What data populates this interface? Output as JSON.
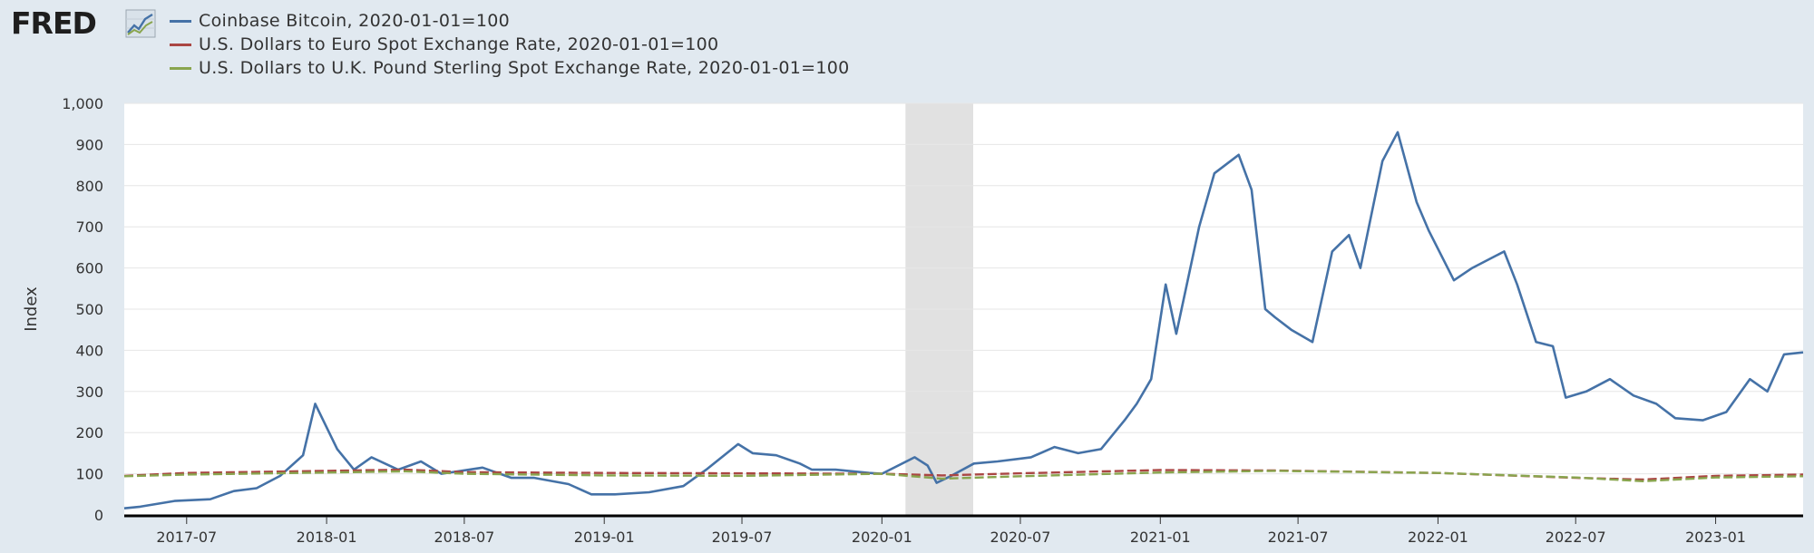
{
  "logo": {
    "text": "FRED",
    "icon": "fred-chart-icon"
  },
  "colors": {
    "bitcoin": "#4572a7",
    "euro": "#aa4643",
    "pound": "#89a54e",
    "recession": "#e1e1e1",
    "background": "#e1e9f0"
  },
  "chart_data": {
    "type": "line",
    "title": "",
    "xlabel": "",
    "ylabel": "Index",
    "ylim": [
      0,
      1000
    ],
    "x_range": [
      "2017-04-10",
      "2023-04-26"
    ],
    "y_ticks": [
      "0",
      "100",
      "200",
      "300",
      "400",
      "500",
      "600",
      "700",
      "800",
      "900",
      "1,000"
    ],
    "x_ticks": [
      "2017-07",
      "2018-01",
      "2018-07",
      "2019-01",
      "2019-07",
      "2020-01",
      "2020-07",
      "2021-01",
      "2021-07",
      "2022-01",
      "2022-07",
      "2023-01"
    ],
    "grid": "horizontal",
    "legend_position": "top",
    "recession_shading": [
      [
        "2020-02-01",
        "2020-04-30"
      ]
    ],
    "series": [
      {
        "name": "Coinbase Bitcoin, 2020-01-01=100",
        "color": "#4572a7",
        "x": [
          "2017-04-10",
          "2017-05-01",
          "2017-06-15",
          "2017-08-01",
          "2017-09-01",
          "2017-10-01",
          "2017-11-01",
          "2017-12-01",
          "2017-12-17",
          "2018-01-15",
          "2018-02-06",
          "2018-03-01",
          "2018-04-05",
          "2018-05-05",
          "2018-06-01",
          "2018-07-25",
          "2018-09-01",
          "2018-10-01",
          "2018-11-15",
          "2018-12-15",
          "2019-01-15",
          "2019-03-01",
          "2019-04-15",
          "2019-05-15",
          "2019-06-26",
          "2019-07-15",
          "2019-08-15",
          "2019-09-15",
          "2019-10-01",
          "2019-11-01",
          "2019-12-15",
          "2020-01-01",
          "2020-02-13",
          "2020-03-01",
          "2020-03-13",
          "2020-04-01",
          "2020-05-01",
          "2020-06-01",
          "2020-07-15",
          "2020-08-15",
          "2020-09-15",
          "2020-10-15",
          "2020-11-15",
          "2020-12-01",
          "2020-12-20",
          "2021-01-08",
          "2021-01-22",
          "2021-02-21",
          "2021-03-13",
          "2021-04-14",
          "2021-05-01",
          "2021-05-19",
          "2021-06-01",
          "2021-06-22",
          "2021-07-20",
          "2021-08-15",
          "2021-09-06",
          "2021-09-21",
          "2021-10-20",
          "2021-11-09",
          "2021-12-04",
          "2021-12-20",
          "2022-01-22",
          "2022-02-15",
          "2022-03-29",
          "2022-04-15",
          "2022-05-10",
          "2022-06-01",
          "2022-06-18",
          "2022-07-15",
          "2022-08-15",
          "2022-09-15",
          "2022-10-15",
          "2022-11-09",
          "2022-12-15",
          "2023-01-15",
          "2023-02-15",
          "2023-03-10",
          "2023-04-01",
          "2023-04-26"
        ],
        "values": [
          16,
          20,
          34,
          38,
          58,
          65,
          95,
          145,
          270,
          160,
          110,
          140,
          110,
          130,
          100,
          115,
          90,
          90,
          75,
          50,
          50,
          55,
          70,
          110,
          172,
          150,
          145,
          125,
          110,
          110,
          102,
          100,
          140,
          120,
          78,
          95,
          125,
          130,
          140,
          165,
          150,
          160,
          230,
          270,
          330,
          560,
          440,
          700,
          830,
          875,
          790,
          500,
          480,
          450,
          420,
          640,
          680,
          600,
          860,
          930,
          760,
          690,
          570,
          600,
          640,
          560,
          420,
          410,
          285,
          300,
          330,
          290,
          270,
          235,
          230,
          250,
          330,
          300,
          390,
          395
        ]
      },
      {
        "name": "U.S. Dollars to Euro Spot Exchange Rate, 2020-01-01=100",
        "color": "#aa4643",
        "x": [
          "2017-04-10",
          "2017-07-01",
          "2018-01-01",
          "2018-04-15",
          "2018-07-01",
          "2019-01-01",
          "2019-07-01",
          "2020-01-01",
          "2020-03-20",
          "2020-07-01",
          "2021-01-01",
          "2021-06-01",
          "2022-01-01",
          "2022-07-01",
          "2022-09-28",
          "2023-01-01",
          "2023-04-26"
        ],
        "values": [
          95,
          102,
          107,
          110,
          104,
          102,
          101,
          100,
          96,
          101,
          109,
          108,
          102,
          90,
          86,
          95,
          98
        ]
      },
      {
        "name": "U.S. Dollars to U.K. Pound Sterling Spot Exchange Rate, 2020-01-01=100",
        "color": "#89a54e",
        "x": [
          "2017-04-10",
          "2017-07-01",
          "2018-01-01",
          "2018-04-15",
          "2018-07-01",
          "2019-01-01",
          "2019-07-01",
          "2020-01-01",
          "2020-03-20",
          "2020-07-01",
          "2021-01-01",
          "2021-06-01",
          "2022-01-01",
          "2022-07-01",
          "2022-09-28",
          "2023-01-01",
          "2023-04-26"
        ],
        "values": [
          94,
          98,
          103,
          106,
          100,
          96,
          95,
          100,
          88,
          94,
          103,
          107,
          102,
          91,
          82,
          91,
          94
        ]
      }
    ]
  }
}
